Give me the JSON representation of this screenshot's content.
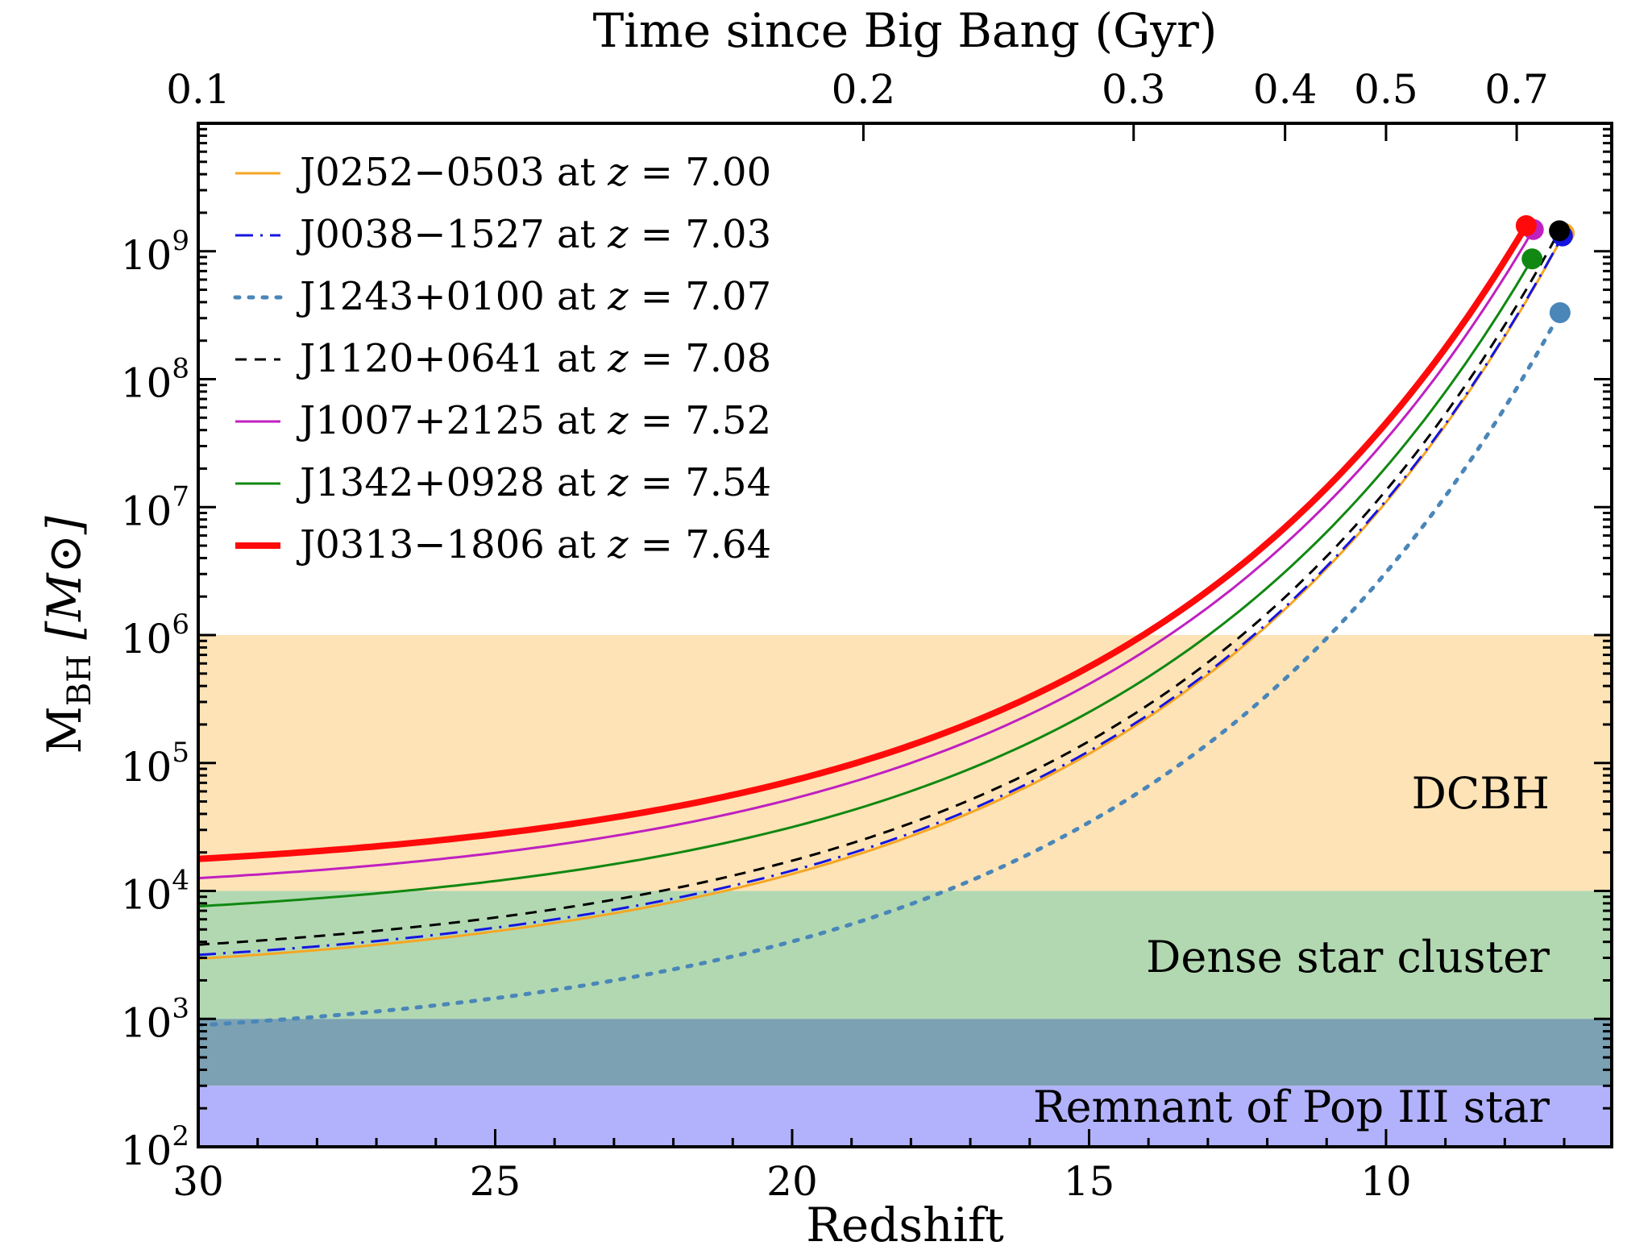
{
  "chart_data": {
    "type": "line",
    "xlabel": "Redshift",
    "ylabel_main": "M",
    "ylabel_sub": "BH",
    "ylabel_unit": "[M⊙]",
    "top_xlabel": "Time since Big Bang (Gyr)",
    "xlim": [
      30,
      6.2
    ],
    "ylim": [
      100,
      10000000000.0
    ],
    "yscale": "log",
    "x_ticks": [
      {
        "value": 30,
        "label": "30"
      },
      {
        "value": 25,
        "label": "25"
      },
      {
        "value": 20,
        "label": "20"
      },
      {
        "value": 15,
        "label": "15"
      },
      {
        "value": 10,
        "label": "10"
      }
    ],
    "y_ticks": [
      {
        "exp": 2,
        "base": "10",
        "sup": "2"
      },
      {
        "exp": 3,
        "base": "10",
        "sup": "3"
      },
      {
        "exp": 4,
        "base": "10",
        "sup": "4"
      },
      {
        "exp": 5,
        "base": "10",
        "sup": "5"
      },
      {
        "exp": 6,
        "base": "10",
        "sup": "6"
      },
      {
        "exp": 7,
        "base": "10",
        "sup": "7"
      },
      {
        "exp": 8,
        "base": "10",
        "sup": "8"
      },
      {
        "exp": 9,
        "base": "10",
        "sup": "9"
      }
    ],
    "top_ticks": [
      {
        "label": "0.1",
        "z": 30.0
      },
      {
        "label": "0.2",
        "z": 18.8
      },
      {
        "label": "0.3",
        "z": 14.25
      },
      {
        "label": "0.4",
        "z": 11.7
      },
      {
        "label": "0.5",
        "z": 10.0
      },
      {
        "label": "0.7",
        "z": 7.8
      }
    ],
    "bands": [
      {
        "label": "DCBH",
        "ymin": 10000,
        "ymax": 1000000,
        "color": "#fde3b6"
      },
      {
        "label": "Dense star cluster",
        "ymin": 1000,
        "ymax": 10000,
        "color": "#b2d8b2"
      },
      {
        "label": "",
        "ymin": 300,
        "ymax": 1000,
        "color": "#7ba1b3"
      },
      {
        "label": "Remnant of Pop III star",
        "ymin": 100,
        "ymax": 300,
        "color": "#b2b2fc"
      }
    ],
    "series": [
      {
        "name": "J0252−0503",
        "z_label": "7.00",
        "z_end": 7.0,
        "log_m_end": 9.14,
        "log_m_start": 3.47,
        "color": "#f5a623",
        "width": 3,
        "dash": ""
      },
      {
        "name": "J0038−1527",
        "z_label": "7.03",
        "z_end": 7.03,
        "log_m_end": 9.12,
        "log_m_start": 3.5,
        "color": "#1515e0",
        "width": 3,
        "dash": "22 9 3 9"
      },
      {
        "name": "J1243+0100",
        "z_label": "7.07",
        "z_end": 7.07,
        "log_m_end": 8.52,
        "log_m_start": 2.95,
        "color": "#4a86b8",
        "width": 5,
        "dash": "5 12"
      },
      {
        "name": "J1120+0641",
        "z_label": "7.08",
        "z_end": 7.08,
        "log_m_end": 9.16,
        "log_m_start": 3.58,
        "color": "#000000",
        "width": 3,
        "dash": "14 10"
      },
      {
        "name": "J1007+2125",
        "z_label": "7.52",
        "z_end": 7.52,
        "log_m_end": 9.17,
        "log_m_start": 4.1,
        "color": "#c020c0",
        "width": 3,
        "dash": ""
      },
      {
        "name": "J1342+0928",
        "z_label": "7.54",
        "z_end": 7.54,
        "log_m_end": 8.94,
        "log_m_start": 3.88,
        "color": "#118811",
        "width": 3,
        "dash": ""
      },
      {
        "name": "J0313−1806",
        "z_label": "7.64",
        "z_end": 7.64,
        "log_m_end": 9.2,
        "log_m_start": 4.25,
        "color": "#ff0a0a",
        "width": 8,
        "dash": ""
      }
    ],
    "legend_position": "top-left",
    "legend_z_prefix": "at",
    "legend_z_symbol": "z",
    "legend_z_eq": "="
  }
}
